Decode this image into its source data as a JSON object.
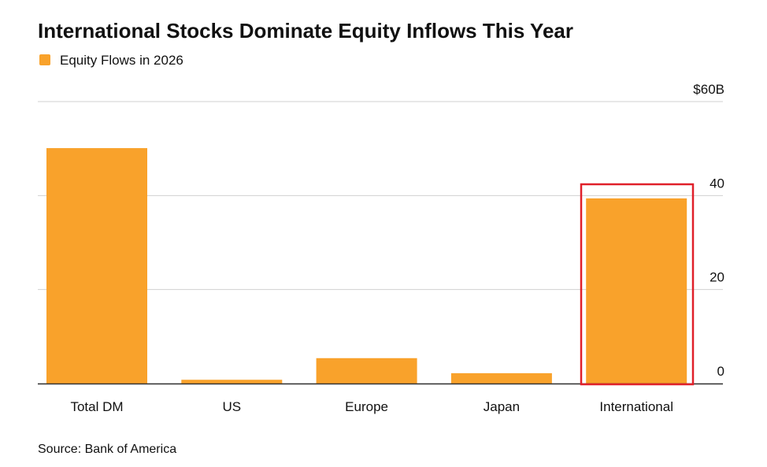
{
  "chart_data": {
    "type": "bar",
    "title": "International Stocks Dominate Equity Inflows This Year",
    "legend": "Equity Flows in 2026",
    "source": "Source: Bank of America",
    "categories": [
      "Total DM",
      "US",
      "Europe",
      "Japan",
      "International"
    ],
    "values": [
      50.1,
      0.8,
      5.4,
      2.2,
      39.4
    ],
    "color": "#f9a22b",
    "ylim": [
      0,
      60
    ],
    "yticks": [
      0,
      20,
      40,
      {
        "value": 60,
        "label": "$60B"
      }
    ],
    "grid": true
  }
}
